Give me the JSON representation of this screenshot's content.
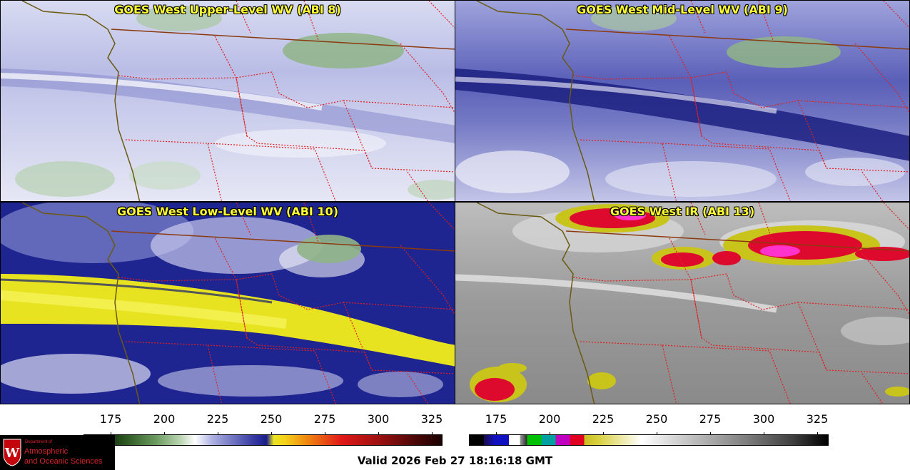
{
  "panels": [
    {
      "id": "upper",
      "title": "GOES West Upper-Level WV (ABI 8)"
    },
    {
      "id": "mid",
      "title": "GOES West Mid-Level WV (ABI 9)"
    },
    {
      "id": "low",
      "title": "GOES West Low-Level WV (ABI 10)"
    },
    {
      "id": "ir",
      "title": "GOES West IR (ABI 13)"
    }
  ],
  "colorbars": {
    "wv": {
      "ticks": [
        "175",
        "200",
        "225",
        "250",
        "275",
        "300",
        "325"
      ]
    },
    "ir": {
      "ticks": [
        "175",
        "200",
        "225",
        "250",
        "275",
        "300",
        "325"
      ]
    }
  },
  "valid_time": "Valid 2026 Feb 27 18:16:18 GMT",
  "logo": {
    "department": "Department of",
    "line1": "Atmospheric",
    "line2": "and Oceanic Sciences",
    "crest_letter": "W"
  },
  "colors": {
    "state_border": "#e02020",
    "coastline": "#6b5a12",
    "intl_border": "#8b3a10",
    "title_text": "#ffff33"
  }
}
